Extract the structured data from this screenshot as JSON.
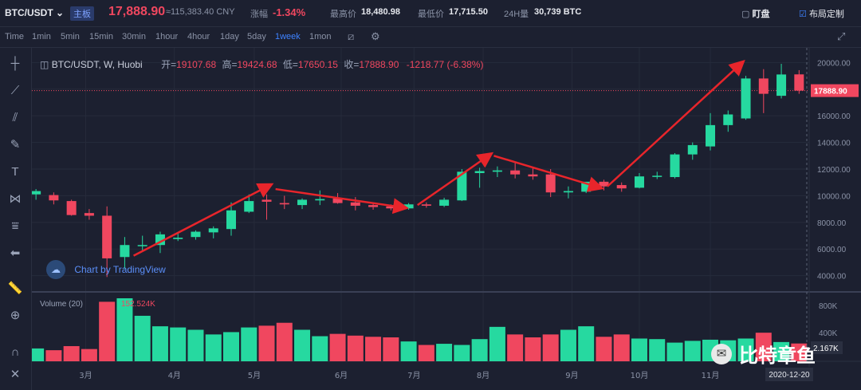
{
  "topbar": {
    "pair": "BTC/USDT",
    "badge": "主板",
    "last_price": "17,888.90",
    "cny_price": "≈115,383.40 CNY",
    "change_label": "涨幅",
    "change_value": "-1.34%",
    "high_label": "最高价",
    "high_value": "18,480.98",
    "low_label": "最低价",
    "low_value": "17,715.50",
    "vol_label": "24H量",
    "vol_value": "30,739 BTC",
    "subscribe_label": "盯盘",
    "layout_label": "布局定制"
  },
  "timeframes": [
    "Time",
    "1min",
    "5min",
    "15min",
    "30min",
    "1hour",
    "4hour",
    "1day",
    "5day",
    "1week",
    "1mon"
  ],
  "active_timeframe": "1week",
  "legend": {
    "symbol": "BTC/USDT, W, Huobi",
    "open_label": "开=",
    "open": "19107.68",
    "high_label": "高=",
    "high": "19424.68",
    "low_label": "低=",
    "low": "17650.15",
    "close_label": "收=",
    "close": "17888.90",
    "change": "-1218.77 (-6.38%)",
    "volume_title": "Volume (20)",
    "volume_value": "152.524K"
  },
  "branding": {
    "tradingview": "Chart by TradingView",
    "watermark": "比特章鱼"
  },
  "colors": {
    "up": "#26d9a0",
    "down": "#f0475f",
    "background": "#1c2030",
    "grid": "#262b3b",
    "arrow": "#e8252b",
    "accent": "#3e82ff"
  },
  "chart_data": {
    "type": "candlestick",
    "interval": "1week",
    "y_axis": {
      "min": 3500,
      "max": 20500,
      "ticks": [
        4000,
        6000,
        8000,
        10000,
        12000,
        14000,
        16000,
        18000,
        20000
      ]
    },
    "volume_axis": {
      "ticks_labels": [
        "800K",
        "400K"
      ]
    },
    "last_price_label": "17888.90",
    "last_volume_label": "2.167K",
    "crosshair_date": "2020-12-20",
    "x_labels": [
      "3月",
      "4月",
      "5月",
      "6月",
      "7月",
      "8月",
      "9月",
      "10月",
      "11月"
    ],
    "x_label_index": [
      2.8,
      7.8,
      12.3,
      17.2,
      21.3,
      25.2,
      30.2,
      34.0,
      38.0
    ],
    "candles": [
      {
        "o": 10100,
        "h": 10500,
        "l": 9700,
        "c": 10350
      },
      {
        "o": 10050,
        "h": 10250,
        "l": 9350,
        "c": 9650
      },
      {
        "o": 9600,
        "h": 9700,
        "l": 8500,
        "c": 8550
      },
      {
        "o": 8700,
        "h": 9000,
        "l": 8200,
        "c": 8500
      },
      {
        "o": 8500,
        "h": 9200,
        "l": 3900,
        "c": 5300
      },
      {
        "o": 5400,
        "h": 6900,
        "l": 4500,
        "c": 6300
      },
      {
        "o": 6250,
        "h": 7000,
        "l": 5850,
        "c": 6300
      },
      {
        "o": 6300,
        "h": 7300,
        "l": 5700,
        "c": 7100
      },
      {
        "o": 6750,
        "h": 7150,
        "l": 6600,
        "c": 6850
      },
      {
        "o": 6900,
        "h": 7400,
        "l": 6700,
        "c": 7300
      },
      {
        "o": 7250,
        "h": 7700,
        "l": 6800,
        "c": 7550
      },
      {
        "o": 7500,
        "h": 9500,
        "l": 7000,
        "c": 8900
      },
      {
        "o": 8800,
        "h": 10100,
        "l": 8700,
        "c": 9600
      },
      {
        "o": 9700,
        "h": 10100,
        "l": 8200,
        "c": 9550
      },
      {
        "o": 9450,
        "h": 10000,
        "l": 9000,
        "c": 9350
      },
      {
        "o": 9300,
        "h": 9800,
        "l": 9000,
        "c": 9700
      },
      {
        "o": 9650,
        "h": 10400,
        "l": 9300,
        "c": 9750
      },
      {
        "o": 9800,
        "h": 10200,
        "l": 9400,
        "c": 9450
      },
      {
        "o": 9500,
        "h": 9900,
        "l": 8900,
        "c": 9250
      },
      {
        "o": 9300,
        "h": 9450,
        "l": 8950,
        "c": 9150
      },
      {
        "o": 9200,
        "h": 9350,
        "l": 8900,
        "c": 9050
      },
      {
        "o": 9050,
        "h": 9450,
        "l": 8950,
        "c": 9350
      },
      {
        "o": 9350,
        "h": 9500,
        "l": 9100,
        "c": 9250
      },
      {
        "o": 9250,
        "h": 9850,
        "l": 9150,
        "c": 9700
      },
      {
        "o": 9650,
        "h": 12000,
        "l": 9600,
        "c": 11800
      },
      {
        "o": 11700,
        "h": 12100,
        "l": 10600,
        "c": 11850
      },
      {
        "o": 11800,
        "h": 12200,
        "l": 11400,
        "c": 11900
      },
      {
        "o": 11900,
        "h": 12450,
        "l": 11300,
        "c": 11600
      },
      {
        "o": 11600,
        "h": 12100,
        "l": 11200,
        "c": 11450
      },
      {
        "o": 11600,
        "h": 12000,
        "l": 9900,
        "c": 10250
      },
      {
        "o": 10250,
        "h": 10700,
        "l": 9800,
        "c": 10350
      },
      {
        "o": 10300,
        "h": 11000,
        "l": 10200,
        "c": 11050
      },
      {
        "o": 11050,
        "h": 11200,
        "l": 10400,
        "c": 10700
      },
      {
        "o": 10800,
        "h": 11000,
        "l": 10300,
        "c": 10550
      },
      {
        "o": 10600,
        "h": 11700,
        "l": 10550,
        "c": 11450
      },
      {
        "o": 11450,
        "h": 11800,
        "l": 11250,
        "c": 11500
      },
      {
        "o": 11400,
        "h": 13200,
        "l": 11300,
        "c": 13100
      },
      {
        "o": 13100,
        "h": 14000,
        "l": 12700,
        "c": 13800
      },
      {
        "o": 13700,
        "h": 16200,
        "l": 13400,
        "c": 15300
      },
      {
        "o": 15300,
        "h": 16400,
        "l": 14800,
        "c": 16100
      },
      {
        "o": 15800,
        "h": 19000,
        "l": 15700,
        "c": 18800
      },
      {
        "o": 18800,
        "h": 19500,
        "l": 16200,
        "c": 17650
      },
      {
        "o": 17500,
        "h": 19900,
        "l": 17300,
        "c": 19100
      },
      {
        "o": 19107.68,
        "h": 19424.68,
        "l": 17650.15,
        "c": 17888.9
      }
    ],
    "volumes": [
      110,
      95,
      130,
      105,
      510,
      540,
      390,
      300,
      290,
      270,
      230,
      250,
      290,
      305,
      330,
      270,
      215,
      235,
      220,
      210,
      205,
      170,
      140,
      150,
      140,
      190,
      295,
      230,
      205,
      230,
      270,
      300,
      210,
      230,
      195,
      190,
      160,
      175,
      185,
      180,
      195,
      245,
      165,
      152.524
    ],
    "arrows": [
      [
        5.5,
        5500,
        13.2,
        10800
      ],
      [
        13.5,
        10500,
        20.8,
        9100
      ],
      [
        21.5,
        9300,
        25.6,
        13100
      ],
      [
        25.8,
        13000,
        31.8,
        10600
      ],
      [
        32.2,
        10700,
        39.8,
        20000
      ]
    ]
  }
}
